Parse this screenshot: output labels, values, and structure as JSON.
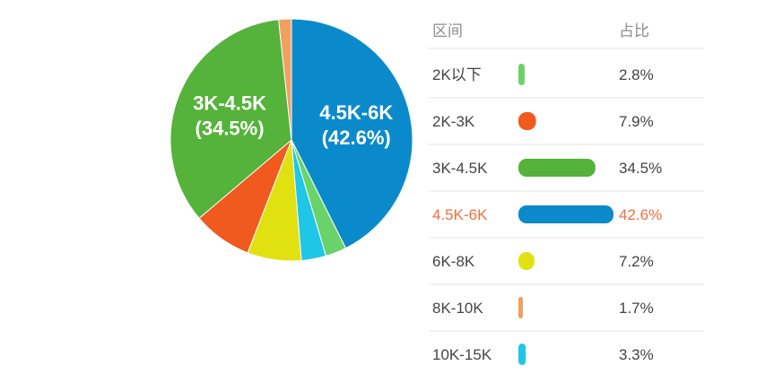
{
  "table": {
    "header_range": "区间",
    "header_ratio": "占比"
  },
  "chart_data": {
    "type": "pie",
    "categories": [
      "2K以下",
      "2K-3K",
      "3K-4.5K",
      "4.5K-6K",
      "6K-8K",
      "8K-10K",
      "10K-15K"
    ],
    "values": [
      2.8,
      7.9,
      34.5,
      42.6,
      7.2,
      1.7,
      3.3
    ],
    "percent_labels": [
      "2.8%",
      "7.9%",
      "34.5%",
      "42.6%",
      "7.2%",
      "1.7%",
      "3.3%"
    ],
    "colors": [
      "#6ad26a",
      "#f05a1e",
      "#55b23a",
      "#0b8acb",
      "#e1e112",
      "#f0a060",
      "#20c6e6"
    ],
    "highlight_index": 3,
    "highlight_color": "#f07040",
    "pie_labels": [
      {
        "category_index": 3,
        "name": "4.5K-6K",
        "percent": "(42.6%)"
      },
      {
        "category_index": 2,
        "name": "3K-4.5K",
        "percent": "(34.5%)"
      }
    ]
  }
}
